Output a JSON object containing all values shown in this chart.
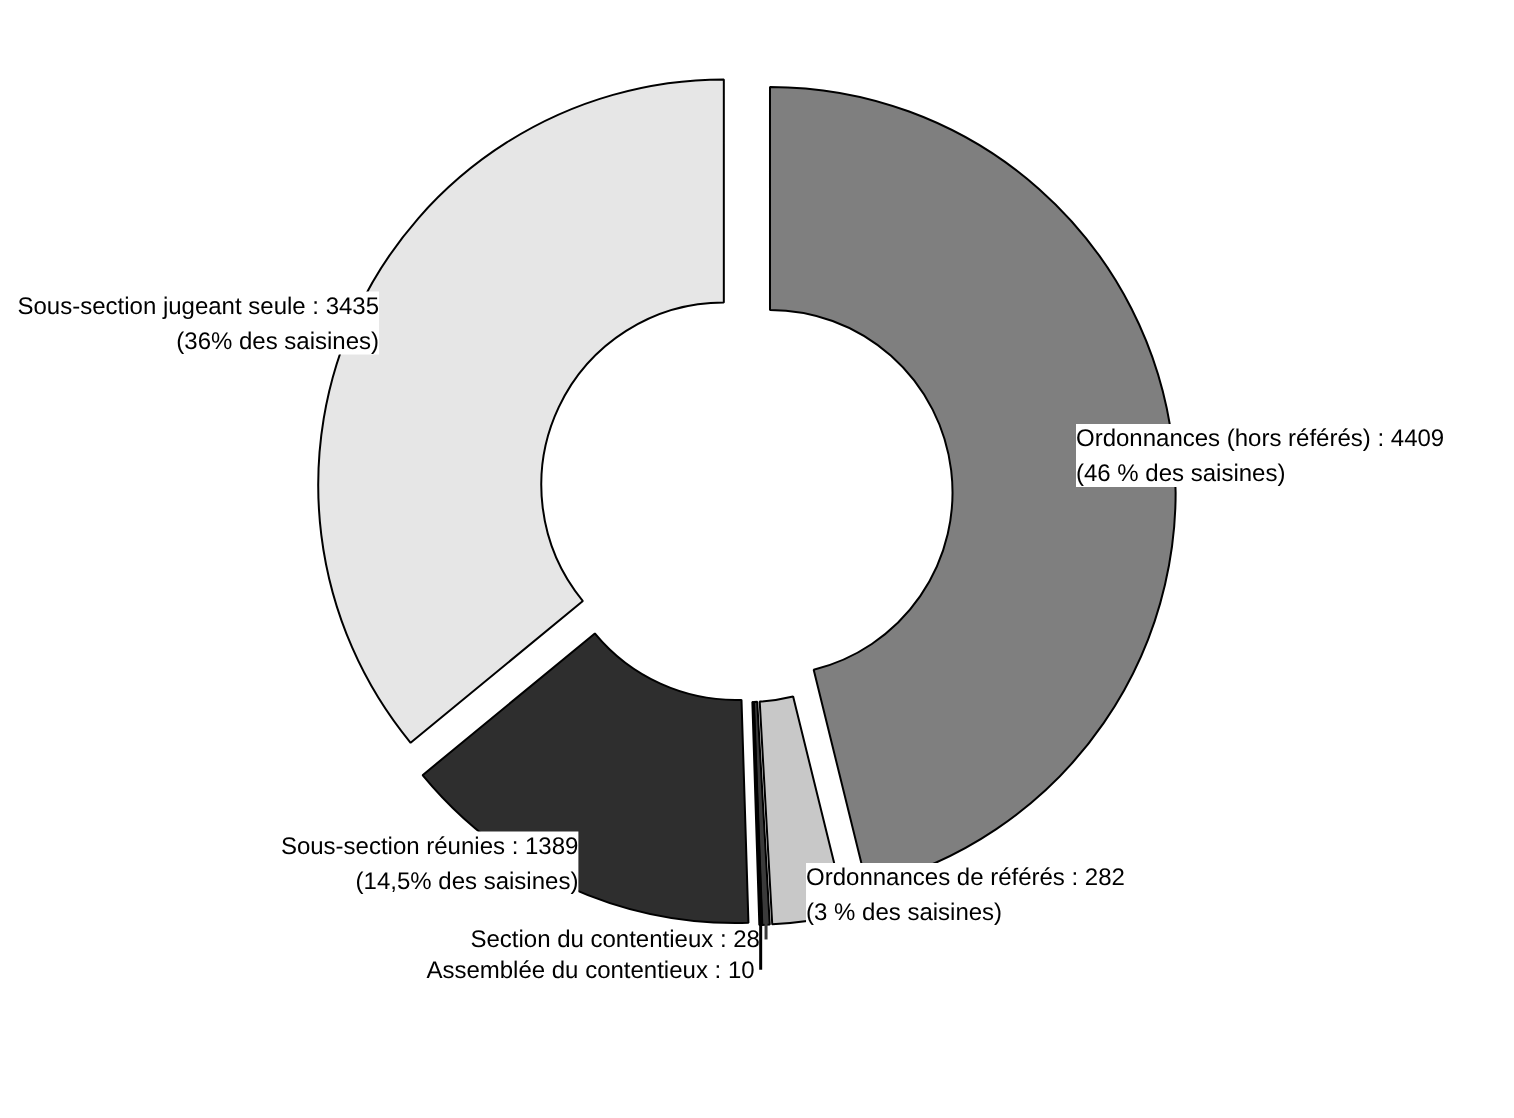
{
  "chart_data": {
    "type": "donut",
    "categories": [
      "Ordonnances (hors référés)",
      "Ordonnances de référés",
      "Section du contentieux",
      "Assemblée du contentieux",
      "Sous-section réunies",
      "Sous-section jugeant seule"
    ],
    "values": [
      4409,
      282,
      28,
      10,
      1389,
      3435
    ],
    "colors": [
      "#7f7f7f",
      "#c8c8c8",
      "#3a3a3a",
      "#000000",
      "#2e2e2e",
      "#e6e6e6"
    ],
    "value_labels": [
      "4409 (46 % des saisines)",
      "282 (3 % des saisines)",
      "28",
      "10",
      "1389 (14,5% des saisines)",
      "3435 (36% des saisines)"
    ]
  }
}
